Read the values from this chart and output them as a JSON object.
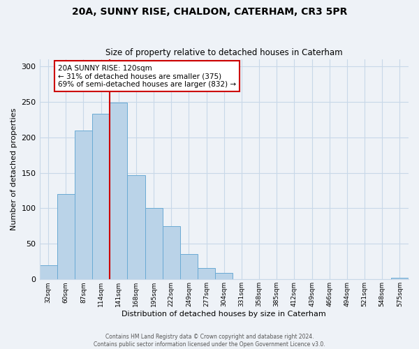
{
  "title": "20A, SUNNY RISE, CHALDON, CATERHAM, CR3 5PR",
  "subtitle": "Size of property relative to detached houses in Caterham",
  "xlabel": "Distribution of detached houses by size in Caterham",
  "ylabel": "Number of detached properties",
  "categories": [
    "32sqm",
    "60sqm",
    "87sqm",
    "114sqm",
    "141sqm",
    "168sqm",
    "195sqm",
    "222sqm",
    "249sqm",
    "277sqm",
    "304sqm",
    "331sqm",
    "358sqm",
    "385sqm",
    "412sqm",
    "439sqm",
    "466sqm",
    "494sqm",
    "521sqm",
    "548sqm",
    "575sqm"
  ],
  "values": [
    20,
    120,
    209,
    233,
    249,
    147,
    100,
    75,
    36,
    16,
    9,
    0,
    0,
    0,
    0,
    0,
    0,
    0,
    0,
    0,
    2
  ],
  "bar_color": "#bad3e8",
  "bar_edge_color": "#6aaad4",
  "grid_color": "#c8d8e8",
  "background_color": "#eef2f7",
  "vline_x": 3.5,
  "vline_color": "#cc0000",
  "annotation_box_text": "20A SUNNY RISE: 120sqm\n← 31% of detached houses are smaller (375)\n69% of semi-detached houses are larger (832) →",
  "annotation_box_color": "#cc0000",
  "ylim": [
    0,
    310
  ],
  "yticks": [
    0,
    50,
    100,
    150,
    200,
    250,
    300
  ],
  "footer_line1": "Contains HM Land Registry data © Crown copyright and database right 2024.",
  "footer_line2": "Contains public sector information licensed under the Open Government Licence v3.0."
}
